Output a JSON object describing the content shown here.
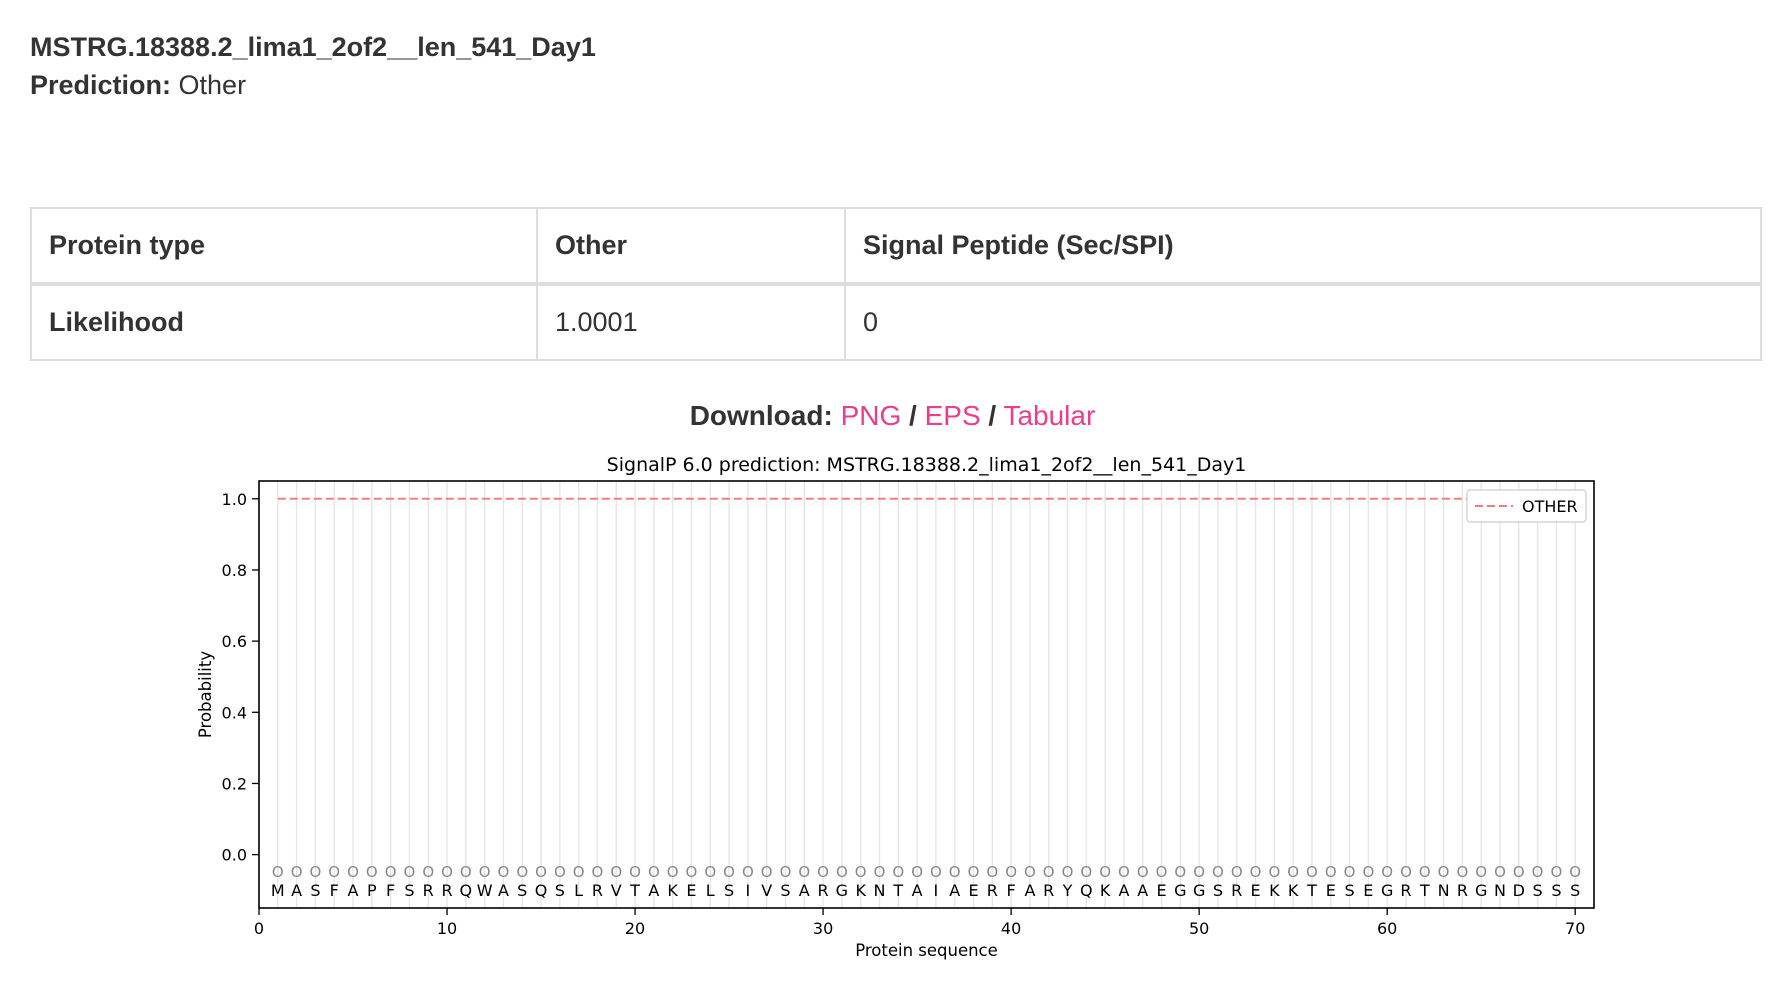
{
  "header": {
    "sequence_name": "MSTRG.18388.2_lima1_2of2__len_541_Day1",
    "prediction_label": "Prediction:",
    "prediction_value": "Other"
  },
  "table": {
    "row_header": "Protein type",
    "col1_header": "Other",
    "col2_header": "Signal Peptide (Sec/SPI)",
    "row_likelihood": "Likelihood",
    "likelihood_other": "1.0001",
    "likelihood_sp": "0"
  },
  "download": {
    "label": "Download:",
    "png": "PNG",
    "separator": "/",
    "eps": "EPS",
    "tabular": "Tabular"
  },
  "chart_data": {
    "type": "line",
    "title": "SignalP 6.0 prediction: MSTRG.18388.2_lima1_2of2__len_541_Day1",
    "xlabel": "Protein sequence",
    "ylabel": "Probability",
    "xlim": [
      0,
      71
    ],
    "ylim": [
      -0.15,
      1.05
    ],
    "x_ticks": [
      0,
      10,
      20,
      30,
      40,
      50,
      60,
      70
    ],
    "y_ticks": [
      0.0,
      0.2,
      0.4,
      0.6,
      0.8,
      1.0
    ],
    "y_tick_labels": [
      "0.0",
      "0.2",
      "0.4",
      "0.6",
      "0.8",
      "1.0"
    ],
    "sequence": "MASFAPFSRRQWASQSLRVTAKELSIVSARGKNTAIAERFARYQKAAEGGSREKKTESEGRTNRGNDSSS",
    "position_marker": "O",
    "series": [
      {
        "name": "OTHER",
        "style": "dashed",
        "color": "#f08080",
        "x_start": 1,
        "x_end": 70,
        "value": 1.0
      }
    ],
    "legend": {
      "position": "top-right",
      "entries": [
        "OTHER"
      ]
    },
    "grid": "vertical"
  }
}
